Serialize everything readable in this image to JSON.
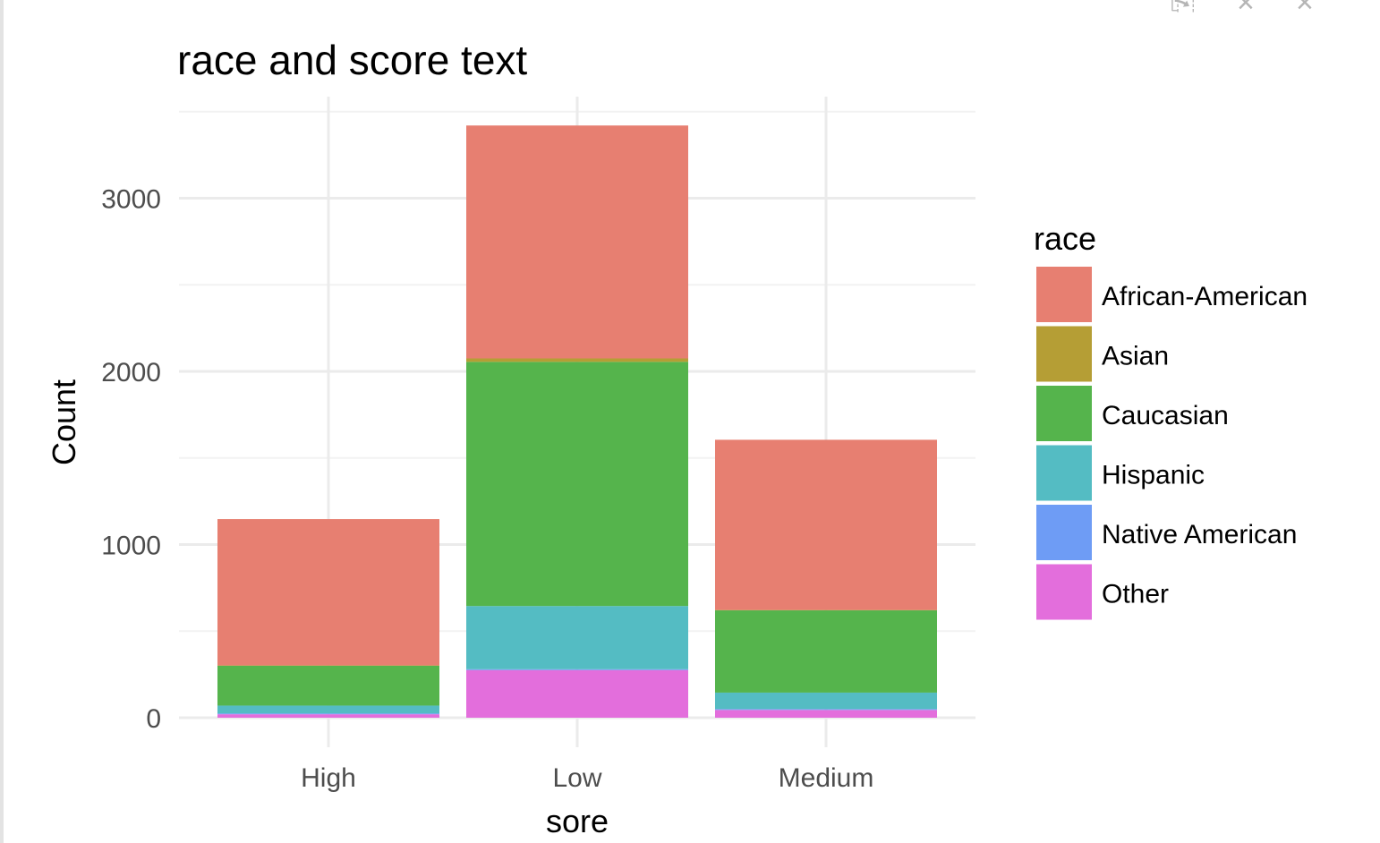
{
  "window": {
    "icons": [
      "export-icon",
      "close-icon",
      "close-icon"
    ]
  },
  "chart_data": {
    "type": "bar",
    "stacked": true,
    "title": "race and score text",
    "xlabel": "sore",
    "ylabel": "Count",
    "categories": [
      "High",
      "Low",
      "Medium"
    ],
    "ylim": [
      0,
      3530
    ],
    "yticks": [
      0,
      1000,
      2000,
      3000
    ],
    "ytick_labels": [
      "0",
      "1000",
      "2000",
      "3000"
    ],
    "grid": true,
    "legend_position": "right",
    "legend_title": "race",
    "series": [
      {
        "name": "Other",
        "color": "#E36EDC",
        "values": [
          20,
          275,
          45
        ]
      },
      {
        "name": "Native American",
        "color": "#6E9CF5",
        "values": [
          5,
          5,
          5
        ]
      },
      {
        "name": "Hispanic",
        "color": "#54BCC3",
        "values": [
          45,
          365,
          95
        ]
      },
      {
        "name": "Caucasian",
        "color": "#55B44C",
        "values": [
          230,
          1410,
          475
        ]
      },
      {
        "name": "Asian",
        "color": "#B59E35",
        "values": [
          2,
          20,
          2
        ]
      },
      {
        "name": "African-American",
        "color": "#E77F71",
        "values": [
          845,
          1345,
          983
        ]
      }
    ],
    "legend_order": [
      "African-American",
      "Asian",
      "Caucasian",
      "Hispanic",
      "Native American",
      "Other"
    ]
  }
}
